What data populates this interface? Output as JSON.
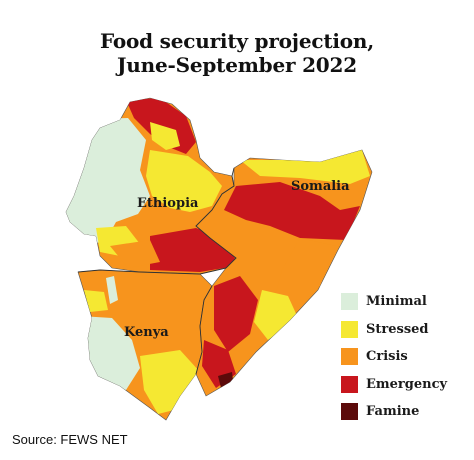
{
  "title_line1": "Food security projection,",
  "title_line2": "June-September 2022",
  "regions": {
    "ethiopia": "Ethiopia",
    "somalia": "Somalia",
    "kenya": "Kenya"
  },
  "legend": [
    {
      "label": "Minimal",
      "color": "#dbeedb"
    },
    {
      "label": "Stressed",
      "color": "#f5e832"
    },
    {
      "label": "Crisis",
      "color": "#f7941d"
    },
    {
      "label": "Emergency",
      "color": "#c8161d"
    },
    {
      "label": "Famine",
      "color": "#5c0a0a"
    }
  ],
  "source": "Source: FEWS NET"
}
